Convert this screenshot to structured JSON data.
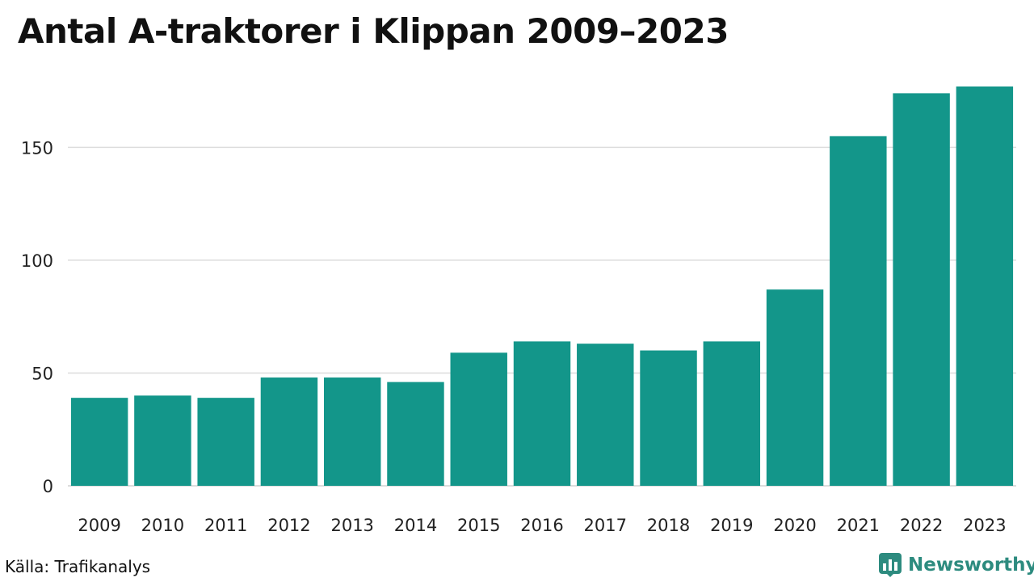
{
  "chart_data": {
    "type": "bar",
    "title": "Antal A-traktorer i Klippan 2009–2023",
    "categories": [
      "2009",
      "2010",
      "2011",
      "2012",
      "2013",
      "2014",
      "2015",
      "2016",
      "2017",
      "2018",
      "2019",
      "2020",
      "2021",
      "2022",
      "2023"
    ],
    "values": [
      39,
      40,
      39,
      48,
      48,
      46,
      59,
      64,
      63,
      60,
      64,
      87,
      155,
      174,
      177
    ],
    "xlabel": "",
    "ylabel": "",
    "ylim": [
      0,
      177
    ],
    "yticks": [
      0,
      50,
      100,
      150
    ],
    "grid": true,
    "bar_color": "#13968a",
    "grid_color": "#dddddd"
  },
  "footer": {
    "source": "Källa: Trafikanalys",
    "brand": "Newsworthy",
    "brand_icon": "chart-logo-icon"
  },
  "colors": {
    "brand": "#2d8b7f"
  }
}
